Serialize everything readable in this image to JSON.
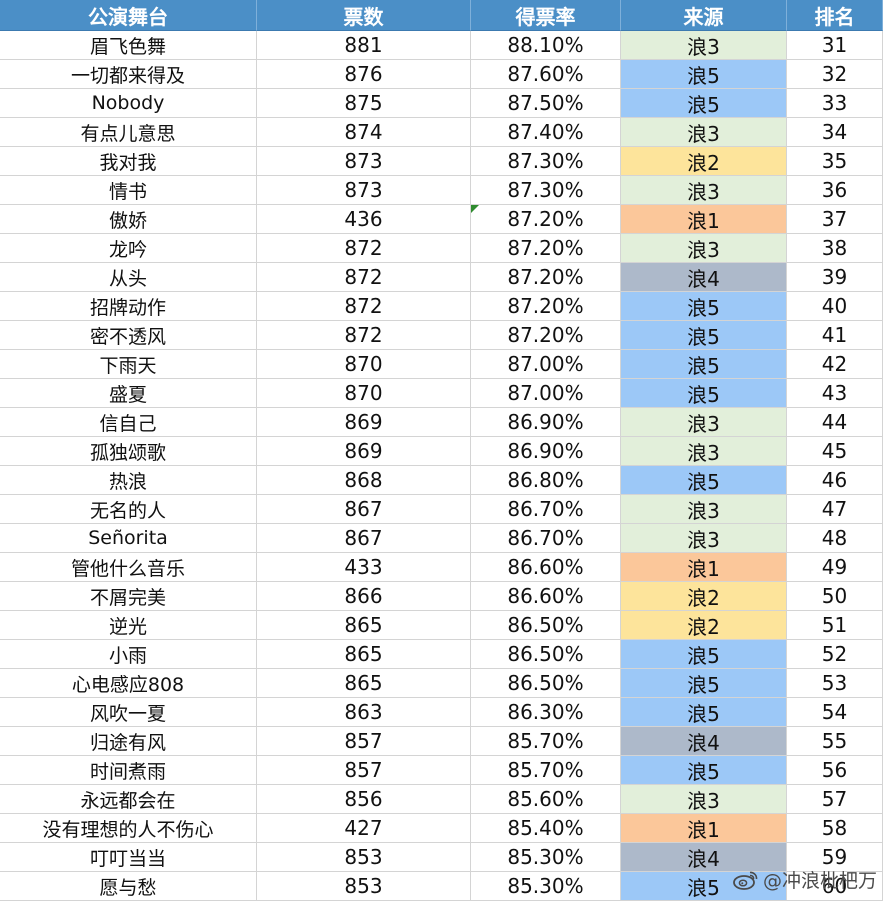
{
  "header": {
    "name": "公演舞台",
    "votes": "票数",
    "rate": "得票率",
    "source": "来源",
    "rank": "排名"
  },
  "source_colors": {
    "浪1": "#fbc79a",
    "浪2": "#fde49b",
    "浪3": "#e2efda",
    "浪4": "#adb9ca",
    "浪5": "#9cc8f7"
  },
  "rows": [
    {
      "name": "眉飞色舞",
      "votes": "881",
      "rate": "88.10%",
      "source": "浪3",
      "rank": "31"
    },
    {
      "name": "一切都来得及",
      "votes": "876",
      "rate": "87.60%",
      "source": "浪5",
      "rank": "32"
    },
    {
      "name": "Nobody",
      "votes": "875",
      "rate": "87.50%",
      "source": "浪5",
      "rank": "33"
    },
    {
      "name": "有点儿意思",
      "votes": "874",
      "rate": "87.40%",
      "source": "浪3",
      "rank": "34"
    },
    {
      "name": "我对我",
      "votes": "873",
      "rate": "87.30%",
      "source": "浪2",
      "rank": "35"
    },
    {
      "name": "情书",
      "votes": "873",
      "rate": "87.30%",
      "source": "浪3",
      "rank": "36"
    },
    {
      "name": "傲娇",
      "votes": "436",
      "rate": "87.20%",
      "source": "浪1",
      "rank": "37",
      "flag": true
    },
    {
      "name": "龙吟",
      "votes": "872",
      "rate": "87.20%",
      "source": "浪3",
      "rank": "38"
    },
    {
      "name": "从头",
      "votes": "872",
      "rate": "87.20%",
      "source": "浪4",
      "rank": "39"
    },
    {
      "name": "招牌动作",
      "votes": "872",
      "rate": "87.20%",
      "source": "浪5",
      "rank": "40"
    },
    {
      "name": "密不透风",
      "votes": "872",
      "rate": "87.20%",
      "source": "浪5",
      "rank": "41"
    },
    {
      "name": "下雨天",
      "votes": "870",
      "rate": "87.00%",
      "source": "浪5",
      "rank": "42"
    },
    {
      "name": "盛夏",
      "votes": "870",
      "rate": "87.00%",
      "source": "浪5",
      "rank": "43"
    },
    {
      "name": "信自己",
      "votes": "869",
      "rate": "86.90%",
      "source": "浪3",
      "rank": "44"
    },
    {
      "name": "孤独颂歌",
      "votes": "869",
      "rate": "86.90%",
      "source": "浪3",
      "rank": "45"
    },
    {
      "name": "热浪",
      "votes": "868",
      "rate": "86.80%",
      "source": "浪5",
      "rank": "46"
    },
    {
      "name": "无名的人",
      "votes": "867",
      "rate": "86.70%",
      "source": "浪3",
      "rank": "47"
    },
    {
      "name": "Señorita",
      "votes": "867",
      "rate": "86.70%",
      "source": "浪3",
      "rank": "48"
    },
    {
      "name": "管他什么音乐",
      "votes": "433",
      "rate": "86.60%",
      "source": "浪1",
      "rank": "49"
    },
    {
      "name": "不屑完美",
      "votes": "866",
      "rate": "86.60%",
      "source": "浪2",
      "rank": "50"
    },
    {
      "name": "逆光",
      "votes": "865",
      "rate": "86.50%",
      "source": "浪2",
      "rank": "51"
    },
    {
      "name": "小雨",
      "votes": "865",
      "rate": "86.50%",
      "source": "浪5",
      "rank": "52"
    },
    {
      "name": "心电感应808",
      "votes": "865",
      "rate": "86.50%",
      "source": "浪5",
      "rank": "53"
    },
    {
      "name": "风吹一夏",
      "votes": "863",
      "rate": "86.30%",
      "source": "浪5",
      "rank": "54"
    },
    {
      "name": "归途有风",
      "votes": "857",
      "rate": "85.70%",
      "source": "浪4",
      "rank": "55"
    },
    {
      "name": "时间煮雨",
      "votes": "857",
      "rate": "85.70%",
      "source": "浪5",
      "rank": "56"
    },
    {
      "name": "永远都会在",
      "votes": "856",
      "rate": "85.60%",
      "source": "浪3",
      "rank": "57"
    },
    {
      "name": "没有理想的人不伤心",
      "votes": "427",
      "rate": "85.40%",
      "source": "浪1",
      "rank": "58"
    },
    {
      "name": "叮叮当当",
      "votes": "853",
      "rate": "85.30%",
      "source": "浪4",
      "rank": "59"
    },
    {
      "name": "愿与愁",
      "votes": "853",
      "rate": "85.30%",
      "source": "浪5",
      "rank": "60"
    }
  ],
  "watermark": {
    "icon": "weibo-icon",
    "text": "@冲浪枇杷万"
  }
}
